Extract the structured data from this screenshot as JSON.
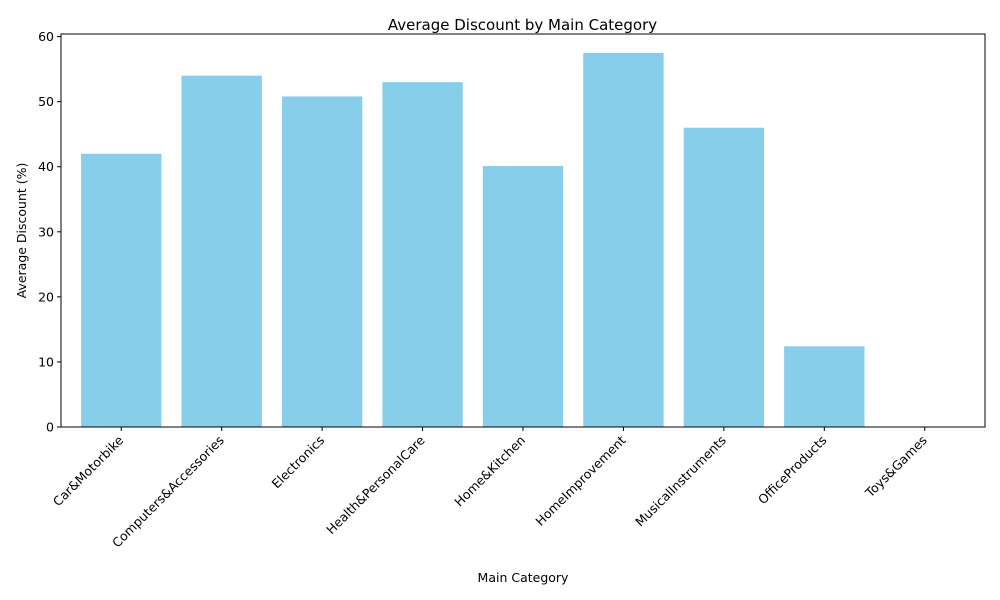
{
  "chart_data": {
    "type": "bar",
    "title": "Average Discount by Main Category",
    "xlabel": "Main Category",
    "ylabel": "Average Discount (%)",
    "categories": [
      "Car&Motorbike",
      "Computers&Accessories",
      "Electronics",
      "Health&PersonalCare",
      "Home&Kitchen",
      "HomeImprovement",
      "MusicalInstruments",
      "OfficeProducts",
      "Toys&Games"
    ],
    "values": [
      42.0,
      54.0,
      50.8,
      53.0,
      40.1,
      57.5,
      46.0,
      12.4,
      0.0
    ],
    "ylim": [
      0,
      60.4
    ],
    "yticks": [
      0,
      10,
      20,
      30,
      40,
      50,
      60
    ],
    "grid": false,
    "bar_color": "#87CEEB"
  }
}
